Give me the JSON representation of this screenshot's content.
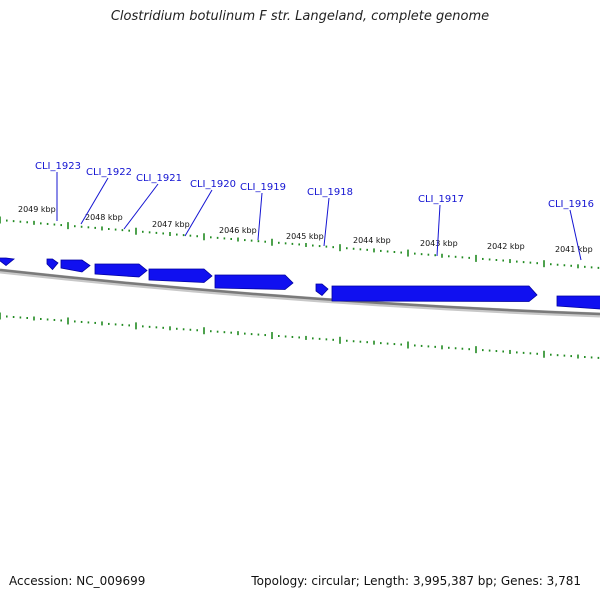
{
  "title": "Clostridium botulinum F str. Langeland, complete genome",
  "footer": {
    "accession": "Accession: NC_009699",
    "summary": "Topology: circular; Length: 3,995,387 bp; Genes: 3,781"
  },
  "colors": {
    "gene": "#1010f0",
    "gene_dark": "#0000a0",
    "tick": "#228b22",
    "backbone": "#808080",
    "label": "#1414d2"
  },
  "kbp_ticks": [
    "2049 kbp",
    "2048 kbp",
    "2047 kbp",
    "2046 kbp",
    "2045 kbp",
    "2044 kbp",
    "2043 kbp",
    "2042 kbp",
    "2041 kbp"
  ],
  "gene_labels": [
    "CLI_1923",
    "CLI_1922",
    "CLI_1921",
    "CLI_1920",
    "CLI_1919",
    "CLI_1918",
    "CLI_1917",
    "CLI_1916"
  ]
}
